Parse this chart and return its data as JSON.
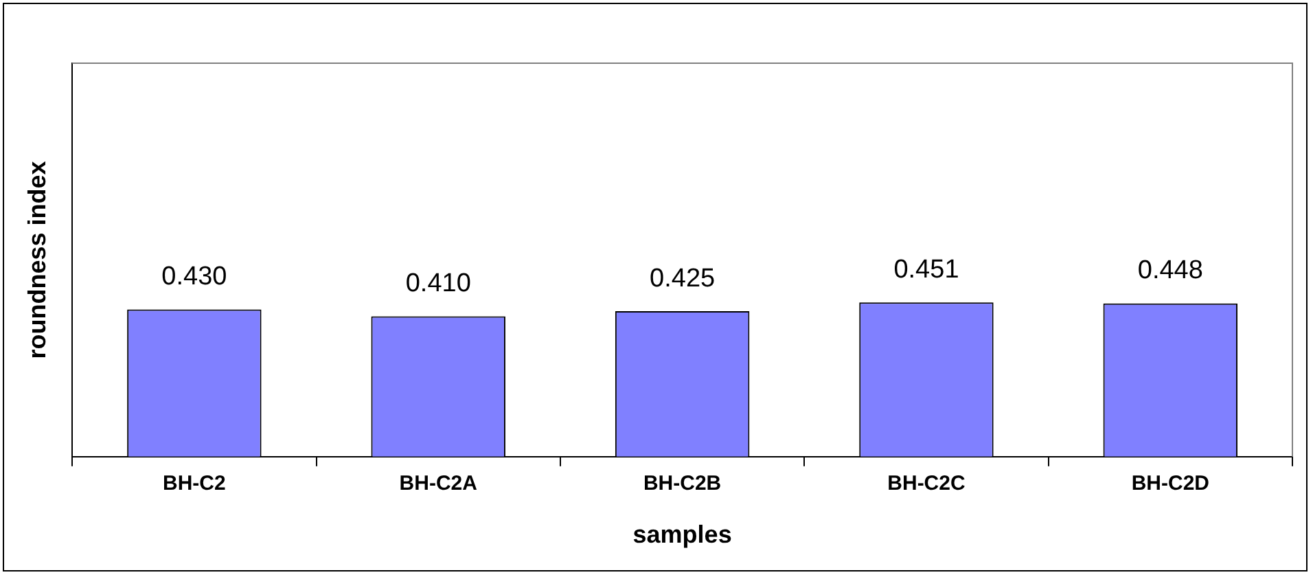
{
  "chart_data": {
    "type": "bar",
    "xlabel": "samples",
    "ylabel": "roundness index",
    "categories": [
      "BH-C2",
      "BH-C2A",
      "BH-C2B",
      "BH-C2C",
      "BH-C2D"
    ],
    "values": [
      0.43,
      0.41,
      0.425,
      0.451,
      0.448
    ],
    "value_labels": [
      "0.430",
      "0.410",
      "0.425",
      "0.451",
      "0.448"
    ],
    "color": "#8080ff",
    "ylim": [
      0,
      1.15
    ],
    "tick_labels": "x",
    "legend": false,
    "grid": false
  }
}
